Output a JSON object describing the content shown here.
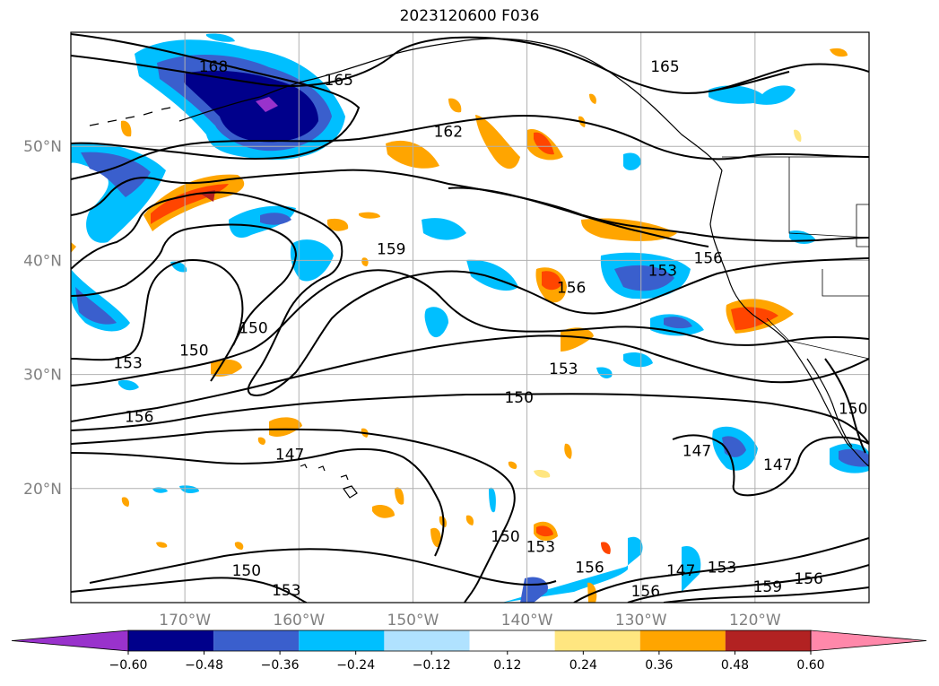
{
  "title": "2023120600 F036",
  "lat_ticks": [
    {
      "value": 50,
      "label": "50°N"
    },
    {
      "value": 40,
      "label": "40°N"
    },
    {
      "value": 30,
      "label": "30°N"
    },
    {
      "value": 20,
      "label": "20°N"
    }
  ],
  "lon_ticks": [
    {
      "value": -170,
      "label": "170°W"
    },
    {
      "value": -160,
      "label": "160°W"
    },
    {
      "value": -150,
      "label": "150°W"
    },
    {
      "value": -140,
      "label": "140°W"
    },
    {
      "value": -130,
      "label": "130°W"
    },
    {
      "value": -120,
      "label": "120°W"
    }
  ],
  "colorbar": {
    "levels": [
      "−0.60",
      "−0.48",
      "−0.36",
      "−0.24",
      "−0.12",
      "0.12",
      "0.24",
      "0.36",
      "0.48",
      "0.60"
    ],
    "colors": [
      "#9932cc",
      "#00008b",
      "#3a5fcd",
      "#00bfff",
      "#b0e2ff",
      "#ffffff",
      "#ffe680",
      "#ffa500",
      "#ff4500",
      "#b22222",
      "#ff88aa"
    ]
  },
  "contour_labels": [
    {
      "text": "168",
      "lon": -167.5,
      "lat": 56.7
    },
    {
      "text": "165",
      "lon": -156.5,
      "lat": 55.5
    },
    {
      "text": "165",
      "lon": -127.9,
      "lat": 56.7
    },
    {
      "text": "162",
      "lon": -146.9,
      "lat": 51.0
    },
    {
      "text": "159",
      "lon": -151.9,
      "lat": 40.7
    },
    {
      "text": "156",
      "lon": -136.1,
      "lat": 37.3
    },
    {
      "text": "153",
      "lon": -128.1,
      "lat": 38.8
    },
    {
      "text": "156",
      "lon": -124.1,
      "lat": 39.9
    },
    {
      "text": "150",
      "lon": -164.0,
      "lat": 33.8
    },
    {
      "text": "150",
      "lon": -169.2,
      "lat": 31.8
    },
    {
      "text": "153",
      "lon": -175.0,
      "lat": 30.7
    },
    {
      "text": "156",
      "lon": -174.0,
      "lat": 26.0
    },
    {
      "text": "153",
      "lon": -136.8,
      "lat": 30.2
    },
    {
      "text": "150",
      "lon": -140.7,
      "lat": 27.7
    },
    {
      "text": "147",
      "lon": -160.8,
      "lat": 22.7
    },
    {
      "text": "150",
      "lon": -111.4,
      "lat": 26.7
    },
    {
      "text": "147",
      "lon": -125.1,
      "lat": 23.0
    },
    {
      "text": "147",
      "lon": -118.0,
      "lat": 21.8
    },
    {
      "text": "150",
      "lon": -141.9,
      "lat": 15.5
    },
    {
      "text": "153",
      "lon": -138.8,
      "lat": 14.6
    },
    {
      "text": "156",
      "lon": -134.5,
      "lat": 12.8
    },
    {
      "text": "147",
      "lon": -126.5,
      "lat": 12.5
    },
    {
      "text": "153",
      "lon": -122.9,
      "lat": 12.8
    },
    {
      "text": "156",
      "lon": -115.3,
      "lat": 11.8
    },
    {
      "text": "150",
      "lon": -164.6,
      "lat": 12.5
    },
    {
      "text": "153",
      "lon": -161.1,
      "lat": 10.8
    },
    {
      "text": "156",
      "lon": -129.6,
      "lat": 10.7
    },
    {
      "text": "159",
      "lon": -118.9,
      "lat": 11.1
    }
  ]
}
